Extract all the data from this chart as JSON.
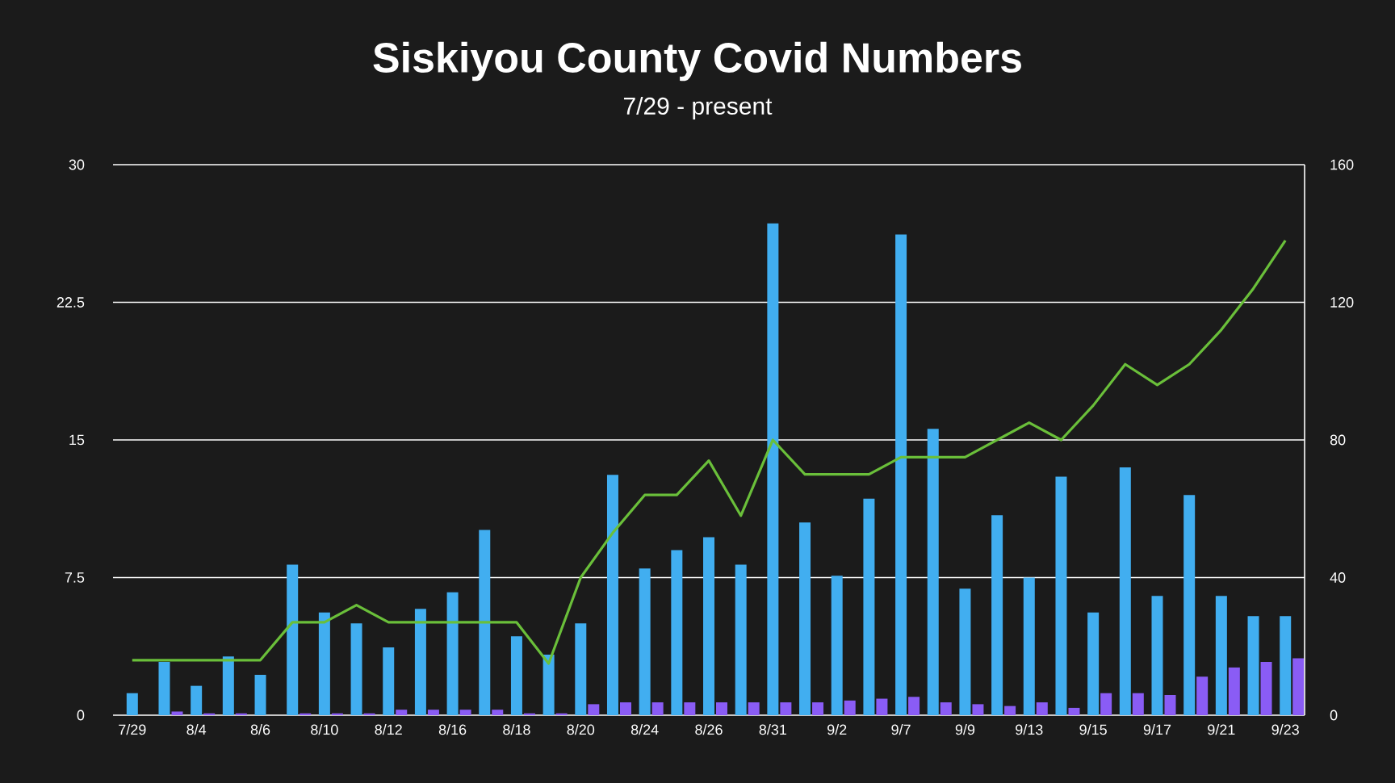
{
  "chart_data": {
    "type": "bar",
    "title": "Siskiyou County Covid Numbers",
    "subtitle": "7/29 - present",
    "categories": [
      "7/29",
      null,
      "8/4",
      null,
      "8/6",
      null,
      "8/10",
      null,
      "8/12",
      null,
      "8/16",
      null,
      "8/18",
      null,
      "8/20",
      null,
      "8/24",
      null,
      "8/26",
      null,
      "8/31",
      null,
      "9/2",
      null,
      "9/7",
      null,
      "9/9",
      null,
      "9/13",
      null,
      "9/15",
      null,
      "9/17",
      null,
      "9/21",
      null,
      "9/23"
    ],
    "series": [
      {
        "color": "#41aef0",
        "values": [
          1.2,
          2.9,
          1.6,
          3.2,
          2.2,
          8.2,
          5.6,
          5.0,
          3.7,
          5.8,
          6.7,
          10.1,
          4.3,
          3.3,
          5.0,
          13.1,
          8.0,
          9.0,
          9.7,
          8.2,
          26.8,
          10.5,
          7.6,
          11.8,
          26.2,
          15.6,
          6.9,
          10.9,
          7.5,
          13.0,
          5.6,
          13.5,
          6.5,
          12.0,
          6.5,
          5.4,
          5.4
        ]
      },
      {
        "color": "#8a5cf5",
        "values": [
          0,
          0.2,
          0.1,
          0.1,
          0,
          0.1,
          0.1,
          0.1,
          0.3,
          0.3,
          0.3,
          0.3,
          0.1,
          0.1,
          0.6,
          0.7,
          0.7,
          0.7,
          0.7,
          0.7,
          0.7,
          0.7,
          0.8,
          0.9,
          1.0,
          0.7,
          0.6,
          0.5,
          0.7,
          0.4,
          1.2,
          1.2,
          1.1,
          2.1,
          2.6,
          2.9,
          3.1
        ]
      },
      {
        "type": "line",
        "axis": "y2",
        "color": "#6abf3a",
        "values": [
          16,
          16,
          16,
          16,
          16,
          27,
          27,
          32,
          27,
          27,
          27,
          27,
          27,
          15,
          40,
          53,
          64,
          64,
          74,
          58,
          80,
          70,
          70,
          70,
          75,
          75,
          75,
          80,
          85,
          80,
          90,
          102,
          96,
          102,
          112,
          124,
          138
        ]
      }
    ],
    "ylim": [
      0,
      30
    ],
    "yticks": [
      0,
      7.5,
      15,
      22.5,
      30
    ],
    "y2lim": [
      0,
      160
    ],
    "y2ticks": [
      0,
      40,
      80,
      120,
      160
    ],
    "grid": "y",
    "marker": "none",
    "line_style": "solid"
  }
}
